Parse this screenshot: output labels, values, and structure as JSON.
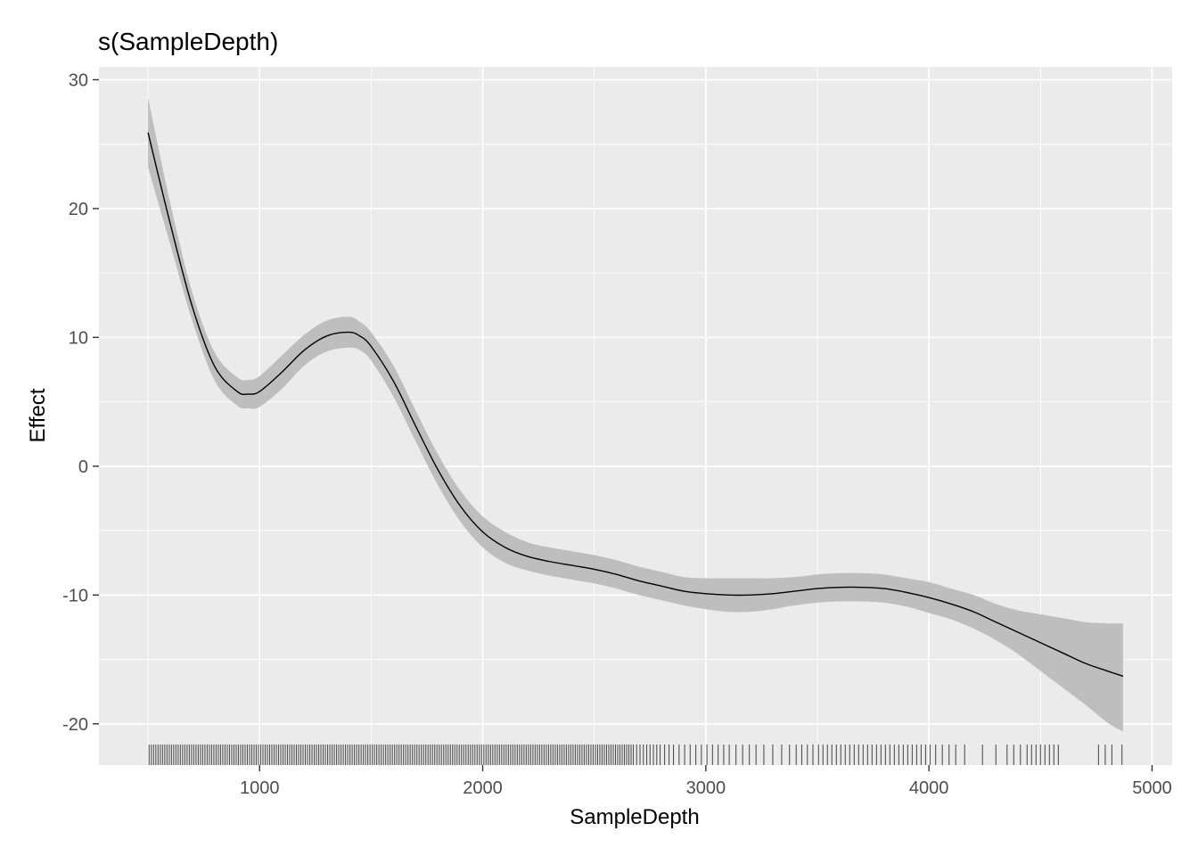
{
  "chart_data": {
    "type": "line",
    "title": "s(SampleDepth)",
    "xlabel": "SampleDepth",
    "ylabel": "Effect",
    "xlim": [
      280,
      5090
    ],
    "ylim": [
      -23.2,
      31.0
    ],
    "x_ticks": [
      1000,
      2000,
      3000,
      4000,
      5000
    ],
    "y_ticks": [
      30,
      20,
      10,
      0,
      -10,
      -20
    ],
    "x_tick_labels": [
      "1000",
      "2000",
      "3000",
      "4000",
      "5000"
    ],
    "y_tick_labels": [
      "30",
      "20",
      "10",
      "0",
      "-10",
      "-20"
    ],
    "grid": true,
    "colors": {
      "panel": "#ebebeb",
      "grid": "#ffffff",
      "band": "#bebebe",
      "line": "#000000",
      "rug": "#000000"
    },
    "series": [
      {
        "x": [
          500,
          600,
          700,
          800,
          900,
          950,
          1000,
          1100,
          1200,
          1300,
          1400,
          1450,
          1500,
          1600,
          1700,
          1800,
          1900,
          2000,
          2100,
          2200,
          2300,
          2400,
          2500,
          2600,
          2700,
          2800,
          2900,
          3000,
          3100,
          3200,
          3300,
          3400,
          3500,
          3600,
          3700,
          3800,
          3900,
          4000,
          4100,
          4200,
          4300,
          4400,
          4500,
          4600,
          4700,
          4800,
          4870
        ],
        "y": [
          25.9,
          18.8,
          12.3,
          7.7,
          5.8,
          5.6,
          5.8,
          7.3,
          9.0,
          10.1,
          10.4,
          10.1,
          9.3,
          6.6,
          3.1,
          -0.3,
          -3.1,
          -5.1,
          -6.3,
          -7.0,
          -7.4,
          -7.7,
          -8.0,
          -8.4,
          -8.9,
          -9.3,
          -9.7,
          -9.9,
          -10.0,
          -10.0,
          -9.9,
          -9.7,
          -9.5,
          -9.4,
          -9.4,
          -9.5,
          -9.8,
          -10.2,
          -10.7,
          -11.3,
          -12.1,
          -12.9,
          -13.7,
          -14.5,
          -15.3,
          -15.9,
          -16.3
        ],
        "lower": [
          23.2,
          17.2,
          11.2,
          6.6,
          4.7,
          4.5,
          4.6,
          6.0,
          7.8,
          8.9,
          9.2,
          9.0,
          8.2,
          5.4,
          1.9,
          -1.5,
          -4.3,
          -6.3,
          -7.5,
          -8.1,
          -8.5,
          -8.8,
          -9.1,
          -9.5,
          -10.0,
          -10.4,
          -10.8,
          -11.1,
          -11.3,
          -11.3,
          -11.1,
          -10.8,
          -10.6,
          -10.5,
          -10.5,
          -10.6,
          -10.9,
          -11.4,
          -11.9,
          -12.6,
          -13.5,
          -14.6,
          -15.9,
          -17.2,
          -18.5,
          -19.9,
          -20.6
        ],
        "upper": [
          28.6,
          20.4,
          13.4,
          8.8,
          6.9,
          6.7,
          7.0,
          8.6,
          10.2,
          11.3,
          11.6,
          11.2,
          10.4,
          7.8,
          4.3,
          0.9,
          -1.9,
          -3.9,
          -5.1,
          -5.9,
          -6.3,
          -6.6,
          -6.9,
          -7.3,
          -7.8,
          -8.2,
          -8.6,
          -8.7,
          -8.7,
          -8.7,
          -8.7,
          -8.6,
          -8.4,
          -8.3,
          -8.3,
          -8.4,
          -8.7,
          -9.0,
          -9.5,
          -10.0,
          -10.7,
          -11.2,
          -11.5,
          -11.8,
          -12.1,
          -12.2,
          -12.2
        ]
      }
    ],
    "rug_x": [
      505,
      515,
      525,
      535,
      545,
      555,
      565,
      575,
      585,
      595,
      605,
      615,
      625,
      635,
      645,
      655,
      665,
      675,
      685,
      695,
      705,
      715,
      725,
      735,
      745,
      755,
      765,
      775,
      785,
      795,
      805,
      815,
      825,
      835,
      845,
      855,
      865,
      875,
      885,
      895,
      905,
      915,
      925,
      935,
      945,
      955,
      965,
      975,
      985,
      995,
      1005,
      1015,
      1025,
      1035,
      1045,
      1055,
      1065,
      1075,
      1085,
      1095,
      1105,
      1115,
      1125,
      1135,
      1145,
      1155,
      1165,
      1175,
      1185,
      1195,
      1205,
      1215,
      1225,
      1235,
      1245,
      1255,
      1265,
      1275,
      1285,
      1295,
      1305,
      1315,
      1325,
      1335,
      1345,
      1355,
      1365,
      1375,
      1385,
      1395,
      1405,
      1415,
      1425,
      1435,
      1445,
      1455,
      1465,
      1475,
      1485,
      1495,
      1505,
      1515,
      1525,
      1535,
      1545,
      1555,
      1565,
      1575,
      1585,
      1595,
      1605,
      1615,
      1625,
      1635,
      1645,
      1655,
      1665,
      1675,
      1685,
      1695,
      1705,
      1715,
      1725,
      1735,
      1745,
      1755,
      1765,
      1775,
      1785,
      1795,
      1805,
      1815,
      1825,
      1835,
      1845,
      1855,
      1865,
      1875,
      1885,
      1895,
      1905,
      1915,
      1925,
      1935,
      1945,
      1955,
      1965,
      1975,
      1985,
      1995,
      2005,
      2015,
      2025,
      2035,
      2045,
      2055,
      2065,
      2075,
      2085,
      2095,
      2105,
      2115,
      2125,
      2135,
      2145,
      2155,
      2165,
      2175,
      2185,
      2195,
      2205,
      2215,
      2225,
      2235,
      2245,
      2255,
      2265,
      2275,
      2285,
      2295,
      2305,
      2315,
      2325,
      2335,
      2345,
      2355,
      2365,
      2375,
      2385,
      2395,
      2405,
      2415,
      2425,
      2435,
      2445,
      2455,
      2465,
      2475,
      2485,
      2495,
      2505,
      2515,
      2525,
      2535,
      2545,
      2555,
      2565,
      2575,
      2585,
      2595,
      2605,
      2615,
      2625,
      2635,
      2645,
      2655,
      2665,
      2675,
      2690,
      2705,
      2720,
      2735,
      2750,
      2765,
      2780,
      2795,
      2815,
      2835,
      2855,
      2880,
      2905,
      2930,
      2955,
      2980,
      3005,
      3030,
      3055,
      3080,
      3105,
      3135,
      3165,
      3195,
      3225,
      3260,
      3300,
      3340,
      3375,
      3405,
      3430,
      3455,
      3480,
      3505,
      3525,
      3545,
      3565,
      3585,
      3605,
      3625,
      3645,
      3665,
      3685,
      3705,
      3725,
      3745,
      3765,
      3785,
      3805,
      3825,
      3845,
      3865,
      3885,
      3905,
      3925,
      3945,
      3965,
      3985,
      4005,
      4030,
      4060,
      4090,
      4120,
      4160,
      4240,
      4300,
      4350,
      4380,
      4410,
      4440,
      4460,
      4480,
      4500,
      4520,
      4540,
      4560,
      4580,
      4760,
      4790,
      4820,
      4865
    ]
  }
}
